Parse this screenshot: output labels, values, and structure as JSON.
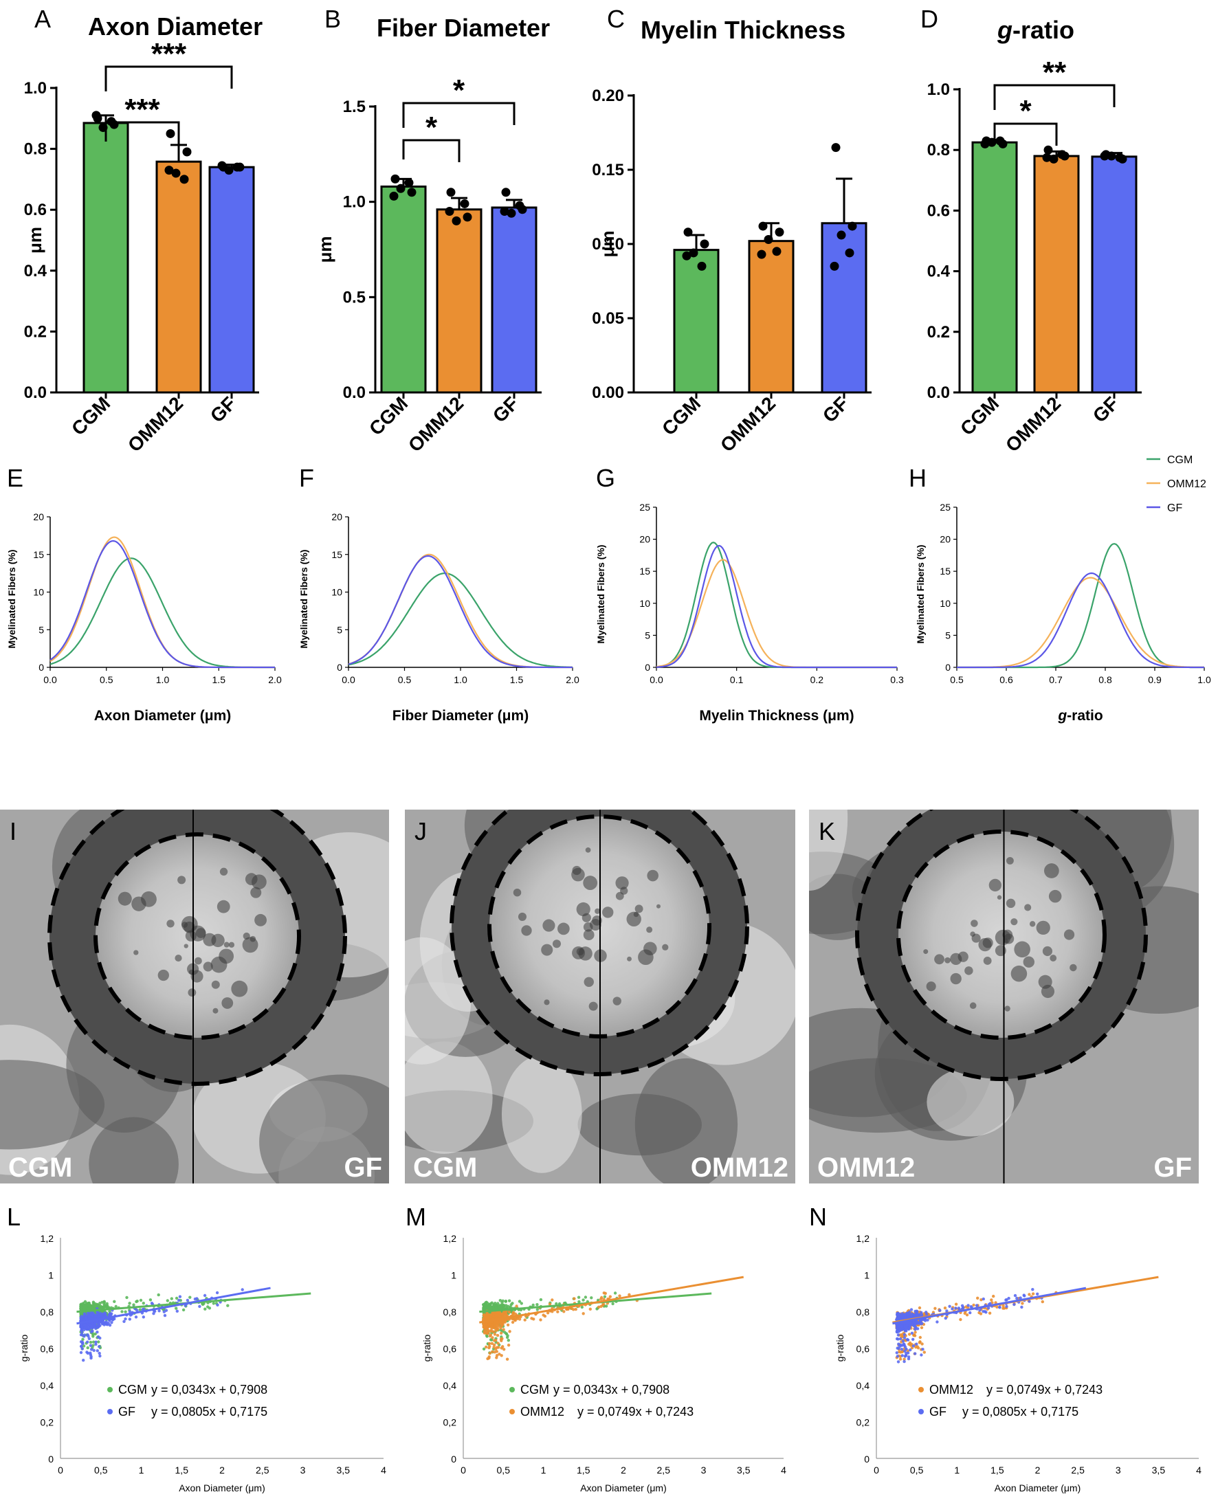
{
  "colors": {
    "CGM": "#5cb85c",
    "OMM12": "#ea8f32",
    "GF": "#5b6cf1",
    "CGM_line": "#3aa36a",
    "OMM12_line": "#f5b25a",
    "GF_line": "#5b56e6"
  },
  "chart_data": [
    {
      "id": "A",
      "type": "bar",
      "panel_label": "A",
      "title": "Axon Diameter",
      "ylabel": "μm",
      "ylim": [
        0,
        1.0
      ],
      "yticks": [
        "0.0",
        "0.2",
        "0.4",
        "0.6",
        "0.8",
        "1.0"
      ],
      "categories": [
        "CGM",
        "OMM12",
        "GF"
      ],
      "values": [
        0.885,
        0.758,
        0.74
      ],
      "sd": [
        0.025,
        0.055,
        0.008
      ],
      "points": [
        [
          0.9,
          0.88,
          0.87,
          0.89,
          0.91
        ],
        [
          0.85,
          0.79,
          0.72,
          0.7,
          0.73
        ],
        [
          0.74,
          0.74,
          0.73,
          0.74,
          0.745
        ]
      ],
      "significance": [
        {
          "pair": [
            "CGM",
            "OMM12"
          ],
          "label": "***"
        },
        {
          "pair": [
            "CGM",
            "GF"
          ],
          "label": "***"
        }
      ]
    },
    {
      "id": "B",
      "type": "bar",
      "panel_label": "B",
      "title": "Fiber Diameter",
      "ylabel": "μm",
      "ylim": [
        0,
        1.5
      ],
      "yticks": [
        "0.0",
        "0.5",
        "1.0",
        "1.5"
      ],
      "categories": [
        "CGM",
        "OMM12",
        "GF"
      ],
      "values": [
        1.08,
        0.96,
        0.97
      ],
      "sd": [
        0.04,
        0.06,
        0.04
      ],
      "points": [
        [
          1.12,
          1.05,
          1.07,
          1.1,
          1.03
        ],
        [
          1.05,
          0.92,
          0.9,
          0.99,
          0.95
        ],
        [
          1.05,
          0.96,
          0.94,
          0.98,
          0.95
        ]
      ],
      "significance": [
        {
          "pair": [
            "CGM",
            "OMM12"
          ],
          "label": "*"
        },
        {
          "pair": [
            "CGM",
            "GF"
          ],
          "label": "*"
        }
      ]
    },
    {
      "id": "C",
      "type": "bar",
      "panel_label": "C",
      "title": "Myelin Thickness",
      "ylabel": "μm",
      "ylim": [
        0,
        0.2
      ],
      "yticks": [
        "0.00",
        "0.05",
        "0.10",
        "0.15",
        "0.20"
      ],
      "categories": [
        "CGM",
        "OMM12",
        "GF"
      ],
      "values": [
        0.096,
        0.102,
        0.114
      ],
      "sd": [
        0.01,
        0.012,
        0.03
      ],
      "points": [
        [
          0.108,
          0.1,
          0.094,
          0.085,
          0.092
        ],
        [
          0.112,
          0.108,
          0.103,
          0.095,
          0.093
        ],
        [
          0.165,
          0.112,
          0.106,
          0.094,
          0.085
        ]
      ],
      "significance": []
    },
    {
      "id": "D",
      "type": "bar",
      "panel_label": "D",
      "title": "g-ratio",
      "title_italic": "g",
      "title_rest": "-ratio",
      "ylabel": "",
      "ylim": [
        0,
        1.0
      ],
      "yticks": [
        "0.0",
        "0.2",
        "0.4",
        "0.6",
        "0.8",
        "1.0"
      ],
      "categories": [
        "CGM",
        "OMM12",
        "GF"
      ],
      "values": [
        0.825,
        0.78,
        0.778
      ],
      "sd": [
        0.008,
        0.015,
        0.012
      ],
      "points": [
        [
          0.83,
          0.82,
          0.825,
          0.83,
          0.82
        ],
        [
          0.8,
          0.78,
          0.77,
          0.785,
          0.775
        ],
        [
          0.785,
          0.77,
          0.78,
          0.775,
          0.78
        ]
      ],
      "significance": [
        {
          "pair": [
            "CGM",
            "OMM12"
          ],
          "label": "*"
        },
        {
          "pair": [
            "CGM",
            "GF"
          ],
          "label": "**"
        }
      ]
    },
    {
      "id": "E",
      "type": "line",
      "panel_label": "E",
      "xlabel": "Axon Diameter (μm)",
      "ylabel": "Myelinated Fibers (%)",
      "xlim": [
        0,
        2.0
      ],
      "ylim": [
        0,
        20
      ],
      "xticks": [
        "0.0",
        "0.5",
        "1.0",
        "1.5",
        "2.0"
      ],
      "yticks": [
        "0",
        "5",
        "10",
        "15",
        "20"
      ],
      "series": [
        {
          "name": "CGM",
          "mean": 0.72,
          "sd": 0.27,
          "peak": 14.5
        },
        {
          "name": "OMM12",
          "mean": 0.57,
          "sd": 0.23,
          "peak": 17.3
        },
        {
          "name": "GF",
          "mean": 0.56,
          "sd": 0.235,
          "peak": 16.8
        }
      ]
    },
    {
      "id": "F",
      "type": "line",
      "panel_label": "F",
      "xlabel": "Fiber Diameter (μm)",
      "ylabel": "Myelinated Fibers (%)",
      "xlim": [
        0,
        2.0
      ],
      "ylim": [
        0,
        20
      ],
      "xticks": [
        "0.0",
        "0.5",
        "1.0",
        "1.5",
        "2.0"
      ],
      "yticks": [
        "0",
        "5",
        "10",
        "15",
        "20"
      ],
      "series": [
        {
          "name": "CGM",
          "mean": 0.86,
          "sd": 0.32,
          "peak": 12.5
        },
        {
          "name": "OMM12",
          "mean": 0.72,
          "sd": 0.27,
          "peak": 15.0
        },
        {
          "name": "GF",
          "mean": 0.71,
          "sd": 0.265,
          "peak": 14.8
        }
      ]
    },
    {
      "id": "G",
      "type": "line",
      "panel_label": "G",
      "xlabel": "Myelin Thickness (μm)",
      "ylabel": "Myelinated Fibers (%)",
      "xlim": [
        0,
        0.3
      ],
      "ylim": [
        0,
        25
      ],
      "xticks": [
        "0.0",
        "0.1",
        "0.2",
        "0.3"
      ],
      "yticks": [
        "0",
        "5",
        "10",
        "15",
        "20",
        "25"
      ],
      "series": [
        {
          "name": "CGM",
          "mean": 0.071,
          "sd": 0.021,
          "peak": 19.5
        },
        {
          "name": "OMM12",
          "mean": 0.083,
          "sd": 0.026,
          "peak": 16.8
        },
        {
          "name": "GF",
          "mean": 0.078,
          "sd": 0.022,
          "peak": 19.0
        }
      ]
    },
    {
      "id": "H",
      "type": "line",
      "panel_label": "H",
      "xlabel": "g-ratio",
      "xlabel_italic": "g",
      "xlabel_rest": "-ratio",
      "ylabel": "Myelinated Fibers (%)",
      "xlim": [
        0.5,
        1.0
      ],
      "ylim": [
        0,
        25
      ],
      "xticks": [
        "0.5",
        "0.6",
        "0.7",
        "0.8",
        "0.9",
        "1.0"
      ],
      "yticks": [
        "0",
        "5",
        "10",
        "15",
        "20",
        "25"
      ],
      "series": [
        {
          "name": "CGM",
          "mean": 0.818,
          "sd": 0.038,
          "peak": 19.3
        },
        {
          "name": "OMM12",
          "mean": 0.77,
          "sd": 0.058,
          "peak": 14.0
        },
        {
          "name": "GF",
          "mean": 0.772,
          "sd": 0.05,
          "peak": 14.7
        }
      ],
      "legend": [
        "CGM",
        "OMM12",
        "GF"
      ]
    },
    {
      "id": "L",
      "type": "scatter",
      "panel_label": "L",
      "xlabel": "Axon Diameter (μm)",
      "ylabel": "g-ratio",
      "xlim": [
        0,
        4
      ],
      "ylim": [
        0,
        1.2
      ],
      "xticks": [
        "0",
        "0,5",
        "1",
        "1,5",
        "2",
        "2,5",
        "3",
        "3,5",
        "4"
      ],
      "yticks": [
        "0",
        "0,2",
        "0,4",
        "0,6",
        "0,8",
        "1",
        "1,2"
      ],
      "series": [
        {
          "name": "CGM",
          "fit": {
            "slope": 0.0343,
            "intercept": 0.7908,
            "x_range": [
              0.2,
              3.1
            ]
          },
          "equation": "y = 0,0343x + 0,7908"
        },
        {
          "name": "GF",
          "fit": {
            "slope": 0.0805,
            "intercept": 0.7175,
            "x_range": [
              0.2,
              2.6
            ]
          },
          "equation": "y = 0,0805x + 0,7175"
        }
      ]
    },
    {
      "id": "M",
      "type": "scatter",
      "panel_label": "M",
      "xlabel": "Axon Diameter (μm)",
      "ylabel": "g-ratio",
      "xlim": [
        0,
        4
      ],
      "ylim": [
        0,
        1.2
      ],
      "xticks": [
        "0",
        "0,5",
        "1",
        "1,5",
        "2",
        "2,5",
        "3",
        "3,5",
        "4"
      ],
      "yticks": [
        "0",
        "0,2",
        "0,4",
        "0,6",
        "0,8",
        "1",
        "1,2"
      ],
      "series": [
        {
          "name": "CGM",
          "fit": {
            "slope": 0.0343,
            "intercept": 0.7908,
            "x_range": [
              0.2,
              3.1
            ]
          },
          "equation": "y = 0,0343x + 0,7908"
        },
        {
          "name": "OMM12",
          "fit": {
            "slope": 0.0749,
            "intercept": 0.7243,
            "x_range": [
              0.2,
              3.5
            ]
          },
          "equation": "y = 0,0749x + 0,7243"
        }
      ]
    },
    {
      "id": "N",
      "type": "scatter",
      "panel_label": "N",
      "xlabel": "Axon Diameter (μm)",
      "ylabel": "g-ratio",
      "xlim": [
        0,
        4
      ],
      "ylim": [
        0,
        1.2
      ],
      "xticks": [
        "0",
        "0,5",
        "1",
        "1,5",
        "2",
        "2,5",
        "3",
        "3,5",
        "4"
      ],
      "yticks": [
        "0",
        "0,2",
        "0,4",
        "0,6",
        "0,8",
        "1",
        "1,2"
      ],
      "series": [
        {
          "name": "OMM12",
          "fit": {
            "slope": 0.0749,
            "intercept": 0.7243,
            "x_range": [
              0.2,
              3.5
            ]
          },
          "equation": "y = 0,0749x + 0,7243"
        },
        {
          "name": "GF",
          "fit": {
            "slope": 0.0805,
            "intercept": 0.7175,
            "x_range": [
              0.2,
              2.6
            ]
          },
          "equation": "y = 0,0805x + 0,7175"
        }
      ]
    }
  ],
  "em_panels": [
    {
      "label": "I",
      "left": "CGM",
      "right": "GF"
    },
    {
      "label": "J",
      "left": "CGM",
      "right": "OMM12"
    },
    {
      "label": "K",
      "left": "OMM12",
      "right": "GF"
    }
  ]
}
